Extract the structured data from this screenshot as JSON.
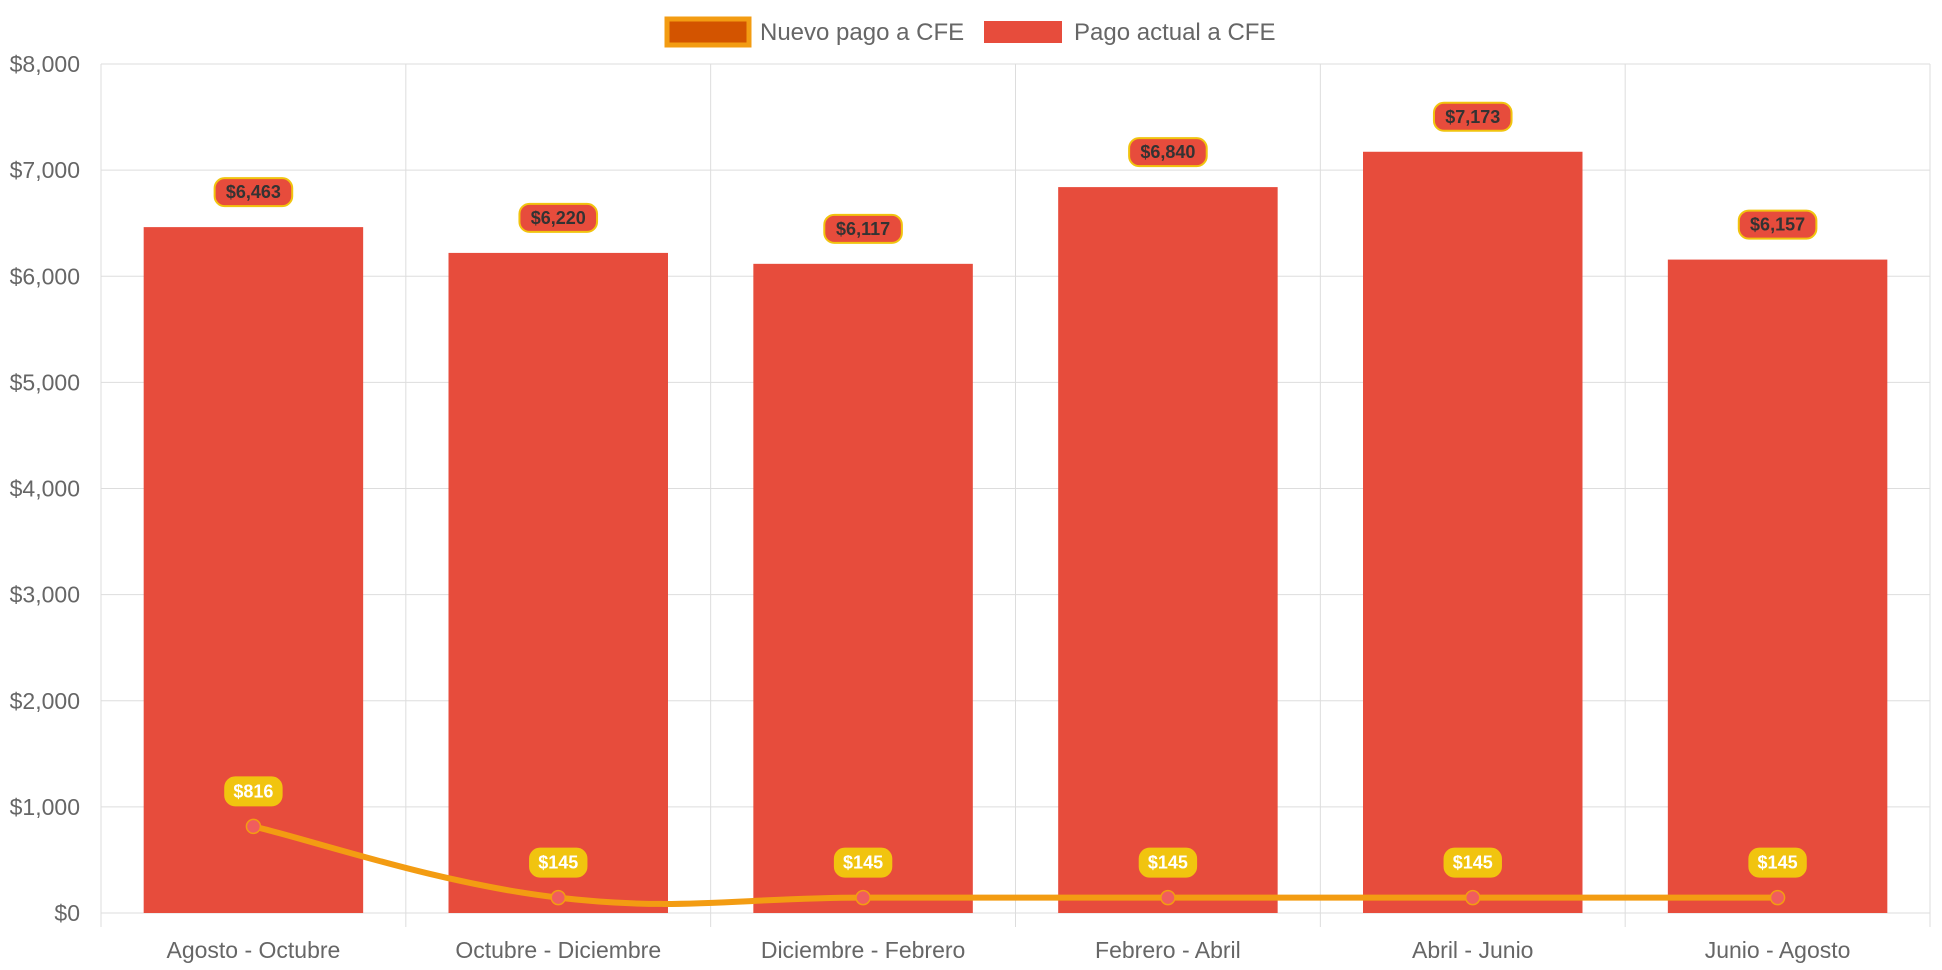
{
  "chart_data": {
    "type": "bar",
    "title": "",
    "xlabel": "",
    "ylabel": "",
    "ylim": [
      0,
      8000
    ],
    "yticks": [
      {
        "value": 0,
        "label": "$0"
      },
      {
        "value": 1000,
        "label": "$1,000"
      },
      {
        "value": 2000,
        "label": "$2,000"
      },
      {
        "value": 3000,
        "label": "$3,000"
      },
      {
        "value": 4000,
        "label": "$4,000"
      },
      {
        "value": 5000,
        "label": "$5,000"
      },
      {
        "value": 6000,
        "label": "$6,000"
      },
      {
        "value": 7000,
        "label": "$7,000"
      },
      {
        "value": 8000,
        "label": "$8,000"
      }
    ],
    "grid": true,
    "legend_position": "top-center",
    "categories": [
      "Agosto - Octubre",
      "Octubre - Diciembre",
      "Diciembre - Febrero",
      "Febrero - Abril",
      "Abril - Junio",
      "Junio - Agosto"
    ],
    "series": [
      {
        "name": "Nuevo pago a CFE",
        "type": "line",
        "color": "#f39c12",
        "legend_fill": "#d35400",
        "point_color": "#f05d5e",
        "label_bg": "#f1c40f",
        "values": [
          816,
          145,
          145,
          145,
          145,
          145
        ],
        "labels": [
          "$816",
          "$145",
          "$145",
          "$145",
          "$145",
          "$145"
        ]
      },
      {
        "name": "Pago actual a CFE",
        "type": "bar",
        "color": "#e74c3c",
        "label_border": "#f1c40f",
        "values": [
          6463,
          6220,
          6117,
          6840,
          7173,
          6157
        ],
        "labels": [
          "$6,463",
          "$6,220",
          "$6,117",
          "$6,840",
          "$7,173",
          "$6,157"
        ]
      }
    ]
  }
}
